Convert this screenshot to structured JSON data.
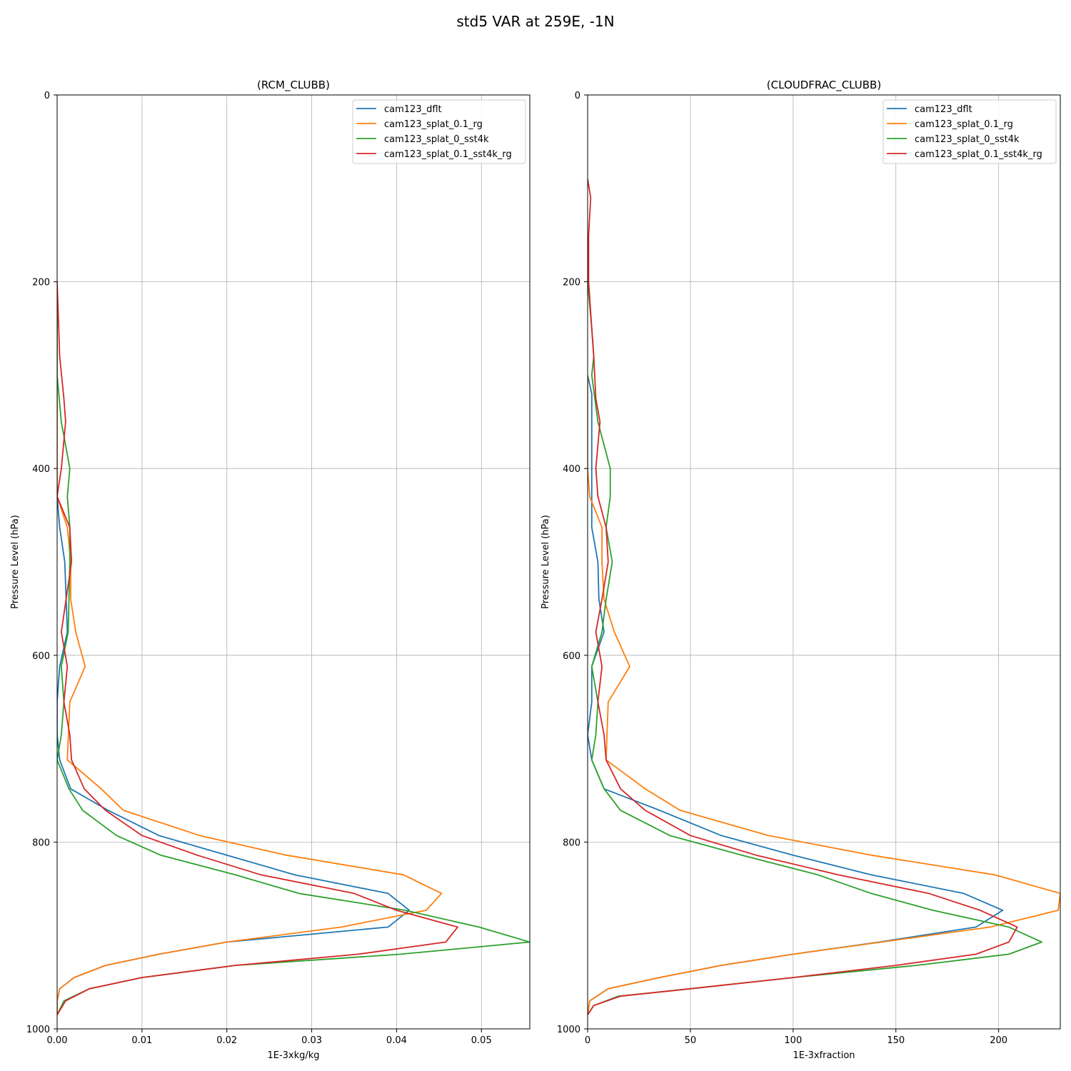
{
  "figure": {
    "title": "std5 VAR at 259E, -1N"
  },
  "chart_data": [
    {
      "type": "line",
      "title": "(RCM_CLUBB)",
      "xlabel": "1E-3xkg/kg",
      "ylabel": "Pressure Level (hPa)",
      "xlim": [
        0,
        0.0557
      ],
      "ylim": [
        1000,
        0
      ],
      "xticks": [
        "0.00",
        "0.01",
        "0.02",
        "0.03",
        "0.04",
        "0.05"
      ],
      "xtick_values": [
        0,
        0.01,
        0.02,
        0.03,
        0.04,
        0.05
      ],
      "yticks": [
        "0",
        "200",
        "400",
        "600",
        "800",
        "1000"
      ],
      "ytick_values": [
        0,
        200,
        400,
        600,
        800,
        1000
      ],
      "grid": true,
      "legend_position": "upper right",
      "series": [
        {
          "name": "cam123_dflt",
          "color": "#1f77b4",
          "points": [
            [
              0,
              200
            ],
            [
              0,
              400
            ],
            [
              0,
              430
            ],
            [
              0.0003,
              463
            ],
            [
              0.0009,
              500
            ],
            [
              0.0012,
              575
            ],
            [
              0.0003,
              612
            ],
            [
              0,
              650
            ],
            [
              0,
              685
            ],
            [
              0.0003,
              712
            ],
            [
              0.0016,
              743
            ],
            [
              0.006,
              766
            ],
            [
              0.012,
              793
            ],
            [
              0.02,
              814
            ],
            [
              0.028,
              835
            ],
            [
              0.039,
              855
            ],
            [
              0.0415,
              873
            ],
            [
              0.039,
              891
            ],
            [
              0.02,
              907
            ],
            [
              0.012,
              920
            ],
            [
              0.0057,
              932
            ],
            [
              0.002,
              945
            ],
            [
              0.0003,
              957
            ],
            [
              0,
              970
            ],
            [
              0,
              985
            ]
          ]
        },
        {
          "name": "cam123_splat_0.1_rg",
          "color": "#ff7f0e",
          "points": [
            [
              0,
              200
            ],
            [
              0,
              400
            ],
            [
              0,
              430
            ],
            [
              0.0012,
              463
            ],
            [
              0.0016,
              500
            ],
            [
              0.0016,
              540
            ],
            [
              0.0022,
              575
            ],
            [
              0.0033,
              612
            ],
            [
              0.0015,
              650
            ],
            [
              0.0012,
              712
            ],
            [
              0.0052,
              743
            ],
            [
              0.0078,
              766
            ],
            [
              0.0168,
              793
            ],
            [
              0.027,
              814
            ],
            [
              0.0408,
              835
            ],
            [
              0.0453,
              855
            ],
            [
              0.0435,
              873
            ],
            [
              0.0335,
              891
            ],
            [
              0.02,
              907
            ],
            [
              0.012,
              920
            ],
            [
              0.0057,
              932
            ],
            [
              0.002,
              945
            ],
            [
              0.0003,
              957
            ],
            [
              0,
              970
            ],
            [
              0,
              985
            ]
          ]
        },
        {
          "name": "cam123_splat_0_sst4k",
          "color": "#2ca02c",
          "points": [
            [
              0,
              200
            ],
            [
              0,
              280
            ],
            [
              0,
              300
            ],
            [
              0.0005,
              350
            ],
            [
              0.0015,
              400
            ],
            [
              0.0012,
              430
            ],
            [
              0.0015,
              463
            ],
            [
              0.0015,
              500
            ],
            [
              0.0013,
              575
            ],
            [
              0.0005,
              612
            ],
            [
              0.0008,
              650
            ],
            [
              0.0005,
              685
            ],
            [
              0,
              712
            ],
            [
              0.0014,
              743
            ],
            [
              0.003,
              766
            ],
            [
              0.007,
              793
            ],
            [
              0.0122,
              814
            ],
            [
              0.021,
              835
            ],
            [
              0.0285,
              855
            ],
            [
              0.041,
              873
            ],
            [
              0.0497,
              891
            ],
            [
              0.0557,
              907
            ],
            [
              0.0405,
              920
            ],
            [
              0.021,
              932
            ],
            [
              0.01,
              945
            ],
            [
              0.0038,
              957
            ],
            [
              0.0008,
              970
            ],
            [
              0,
              985
            ]
          ]
        },
        {
          "name": "cam123_splat_0.1_sst4k_rg",
          "color": "#d62728",
          "points": [
            [
              0,
              200
            ],
            [
              0.0003,
              280
            ],
            [
              0.0008,
              325
            ],
            [
              0.001,
              350
            ],
            [
              0.0005,
              400
            ],
            [
              0,
              430
            ],
            [
              0.0015,
              463
            ],
            [
              0.0017,
              500
            ],
            [
              0.0005,
              575
            ],
            [
              0.0012,
              612
            ],
            [
              0.0008,
              650
            ],
            [
              0.0015,
              685
            ],
            [
              0.0017,
              712
            ],
            [
              0.0032,
              743
            ],
            [
              0.0057,
              766
            ],
            [
              0.01,
              793
            ],
            [
              0.0165,
              814
            ],
            [
              0.024,
              835
            ],
            [
              0.035,
              855
            ],
            [
              0.04,
              873
            ],
            [
              0.0472,
              891
            ],
            [
              0.0458,
              907
            ],
            [
              0.0355,
              920
            ],
            [
              0.021,
              932
            ],
            [
              0.01,
              945
            ],
            [
              0.0038,
              957
            ],
            [
              0.001,
              970
            ],
            [
              0,
              985
            ]
          ]
        }
      ]
    },
    {
      "type": "line",
      "title": "(CLOUDFRAC_CLUBB)",
      "xlabel": "1E-3xfraction",
      "ylabel": "Pressure Level (hPa)",
      "xlim": [
        0,
        230
      ],
      "ylim": [
        1000,
        0
      ],
      "xticks": [
        "0",
        "50",
        "100",
        "150",
        "200"
      ],
      "xtick_values": [
        0,
        50,
        100,
        150,
        200
      ],
      "yticks": [
        "0",
        "200",
        "400",
        "600",
        "800",
        "1000"
      ],
      "ytick_values": [
        0,
        200,
        400,
        600,
        800,
        1000
      ],
      "grid": true,
      "legend_position": "upper right",
      "series": [
        {
          "name": "cam123_dflt",
          "color": "#1f77b4",
          "points": [
            [
              0,
              300
            ],
            [
              2,
              320
            ],
            [
              2,
              400
            ],
            [
              2,
              430
            ],
            [
              2,
              463
            ],
            [
              5,
              500
            ],
            [
              5.5,
              540
            ],
            [
              8,
              575
            ],
            [
              2,
              612
            ],
            [
              2,
              650
            ],
            [
              0,
              685
            ],
            [
              2,
              712
            ],
            [
              8,
              743
            ],
            [
              35,
              766
            ],
            [
              65,
              793
            ],
            [
              100,
              814
            ],
            [
              138,
              835
            ],
            [
              183,
              855
            ],
            [
              202,
              873
            ],
            [
              189,
              891
            ],
            [
              142,
              907
            ],
            [
              100,
              920
            ],
            [
              65,
              932
            ],
            [
              35,
              945
            ],
            [
              10,
              957
            ],
            [
              1,
              970
            ],
            [
              0,
              985
            ]
          ]
        },
        {
          "name": "cam123_splat_0.1_rg",
          "color": "#ff7f0e",
          "points": [
            [
              0,
              300
            ],
            [
              0,
              400
            ],
            [
              1,
              430
            ],
            [
              7,
              463
            ],
            [
              7,
              500
            ],
            [
              8,
              540
            ],
            [
              13,
              575
            ],
            [
              20.5,
              612
            ],
            [
              10,
              650
            ],
            [
              9,
              712
            ],
            [
              28,
              743
            ],
            [
              45,
              766
            ],
            [
              88,
              793
            ],
            [
              138,
              814
            ],
            [
              198,
              835
            ],
            [
              230,
              855
            ],
            [
              229,
              873
            ],
            [
              196,
              891
            ],
            [
              143,
              907
            ],
            [
              100,
              920
            ],
            [
              65,
              932
            ],
            [
              35,
              945
            ],
            [
              10,
              957
            ],
            [
              1,
              970
            ],
            [
              0,
              985
            ]
          ]
        },
        {
          "name": "cam123_splat_0_sst4k",
          "color": "#2ca02c",
          "points": [
            [
              0,
              200
            ],
            [
              2,
              250
            ],
            [
              3,
              280
            ],
            [
              2,
              300
            ],
            [
              5,
              350
            ],
            [
              11,
              400
            ],
            [
              11,
              430
            ],
            [
              9,
              463
            ],
            [
              12,
              500
            ],
            [
              9,
              540
            ],
            [
              7,
              575
            ],
            [
              2,
              612
            ],
            [
              5,
              650
            ],
            [
              4,
              685
            ],
            [
              2,
              712
            ],
            [
              8,
              743
            ],
            [
              16,
              766
            ],
            [
              40,
              793
            ],
            [
              75,
              814
            ],
            [
              112,
              835
            ],
            [
              138,
              855
            ],
            [
              168,
              873
            ],
            [
              205,
              891
            ],
            [
              221,
              907
            ],
            [
              205,
              920
            ],
            [
              160,
              932
            ],
            [
              100,
              945
            ],
            [
              50,
              957
            ],
            [
              15,
              965
            ],
            [
              3,
              975
            ],
            [
              0,
              985
            ]
          ]
        },
        {
          "name": "cam123_splat_0.1_sst4k_rg",
          "color": "#d62728",
          "points": [
            [
              0,
              90
            ],
            [
              1.5,
              110
            ],
            [
              0.5,
              150
            ],
            [
              0.5,
              200
            ],
            [
              2,
              250
            ],
            [
              3,
              280
            ],
            [
              4,
              325
            ],
            [
              6,
              350
            ],
            [
              4,
              400
            ],
            [
              5,
              430
            ],
            [
              9,
              463
            ],
            [
              10,
              500
            ],
            [
              7,
              540
            ],
            [
              4,
              575
            ],
            [
              7,
              612
            ],
            [
              5,
              650
            ],
            [
              8,
              685
            ],
            [
              9,
              712
            ],
            [
              16,
              743
            ],
            [
              28,
              766
            ],
            [
              50,
              793
            ],
            [
              82,
              814
            ],
            [
              122,
              835
            ],
            [
              166,
              855
            ],
            [
              191,
              873
            ],
            [
              209,
              891
            ],
            [
              205,
              907
            ],
            [
              189,
              920
            ],
            [
              150,
              932
            ],
            [
              100,
              945
            ],
            [
              50,
              957
            ],
            [
              16,
              965
            ],
            [
              3,
              975
            ],
            [
              0,
              985
            ]
          ]
        }
      ]
    }
  ]
}
